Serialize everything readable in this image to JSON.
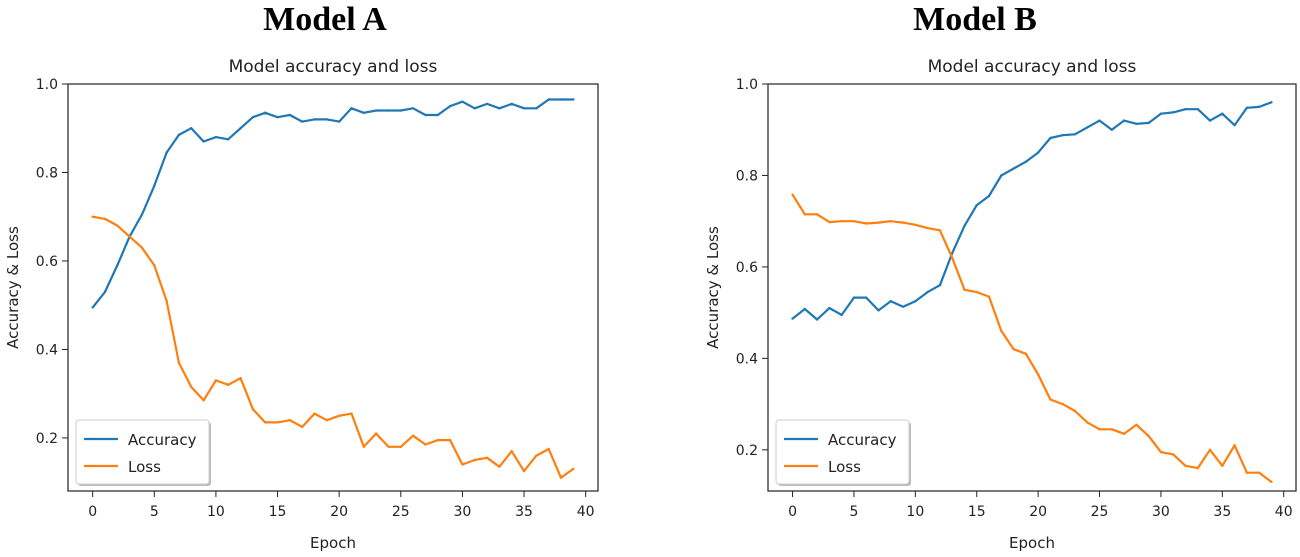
{
  "colors": {
    "accuracy": "#1f77b4",
    "loss": "#ff7f0e"
  },
  "charts": [
    {
      "heading": "Model A"
    },
    {
      "heading": "Model B"
    }
  ],
  "chart_data": [
    {
      "type": "line",
      "title": "Model accuracy and loss",
      "xlabel": "Epoch",
      "ylabel": "Accuracy & Loss",
      "xlim": [
        -2,
        41
      ],
      "ylim": [
        0.08,
        1.0
      ],
      "xticks": [
        0,
        5,
        10,
        15,
        20,
        25,
        30,
        35,
        40
      ],
      "yticks": [
        0.2,
        0.4,
        0.6,
        0.8,
        1.0
      ],
      "legend": "lower-left",
      "x": [
        0,
        1,
        2,
        3,
        4,
        5,
        6,
        7,
        8,
        9,
        10,
        11,
        12,
        13,
        14,
        15,
        16,
        17,
        18,
        19,
        20,
        21,
        22,
        23,
        24,
        25,
        26,
        27,
        28,
        29,
        30,
        31,
        32,
        33,
        34,
        35,
        36,
        37,
        38,
        39
      ],
      "series": [
        {
          "name": "Accuracy",
          "color": "#1f77b4",
          "values": [
            0.495,
            0.53,
            0.59,
            0.655,
            0.705,
            0.77,
            0.845,
            0.885,
            0.9,
            0.87,
            0.88,
            0.875,
            0.9,
            0.925,
            0.935,
            0.925,
            0.93,
            0.915,
            0.92,
            0.92,
            0.915,
            0.945,
            0.935,
            0.94,
            0.94,
            0.94,
            0.945,
            0.93,
            0.93,
            0.95,
            0.96,
            0.945,
            0.955,
            0.945,
            0.955,
            0.945,
            0.945,
            0.965,
            0.965,
            0.965
          ]
        },
        {
          "name": "Loss",
          "color": "#ff7f0e",
          "values": [
            0.7,
            0.695,
            0.68,
            0.655,
            0.63,
            0.59,
            0.51,
            0.37,
            0.315,
            0.285,
            0.33,
            0.32,
            0.335,
            0.265,
            0.235,
            0.235,
            0.24,
            0.225,
            0.255,
            0.24,
            0.25,
            0.255,
            0.18,
            0.21,
            0.18,
            0.18,
            0.205,
            0.185,
            0.195,
            0.195,
            0.14,
            0.15,
            0.155,
            0.135,
            0.17,
            0.125,
            0.16,
            0.175,
            0.11,
            0.13
          ]
        }
      ]
    },
    {
      "type": "line",
      "title": "Model accuracy and loss",
      "xlabel": "Epoch",
      "ylabel": "Accuracy & Loss",
      "xlim": [
        -2,
        41
      ],
      "ylim": [
        0.11,
        1.0
      ],
      "xticks": [
        0,
        5,
        10,
        15,
        20,
        25,
        30,
        35,
        40
      ],
      "yticks": [
        0.2,
        0.4,
        0.6,
        0.8,
        1.0
      ],
      "legend": "lower-left",
      "x": [
        0,
        1,
        2,
        3,
        4,
        5,
        6,
        7,
        8,
        9,
        10,
        11,
        12,
        13,
        14,
        15,
        16,
        17,
        18,
        19,
        20,
        21,
        22,
        23,
        24,
        25,
        26,
        27,
        28,
        29,
        30,
        31,
        32,
        33,
        34,
        35,
        36,
        37,
        38,
        39
      ],
      "series": [
        {
          "name": "Accuracy",
          "color": "#1f77b4",
          "values": [
            0.487,
            0.508,
            0.485,
            0.51,
            0.495,
            0.533,
            0.533,
            0.505,
            0.525,
            0.513,
            0.525,
            0.545,
            0.56,
            0.63,
            0.69,
            0.735,
            0.755,
            0.8,
            0.815,
            0.83,
            0.85,
            0.882,
            0.888,
            0.89,
            0.905,
            0.92,
            0.9,
            0.92,
            0.913,
            0.915,
            0.935,
            0.938,
            0.945,
            0.945,
            0.92,
            0.935,
            0.91,
            0.948,
            0.95,
            0.96
          ]
        },
        {
          "name": "Loss",
          "color": "#ff7f0e",
          "values": [
            0.758,
            0.715,
            0.715,
            0.698,
            0.7,
            0.7,
            0.695,
            0.697,
            0.7,
            0.697,
            0.692,
            0.685,
            0.68,
            0.62,
            0.55,
            0.545,
            0.535,
            0.46,
            0.42,
            0.41,
            0.365,
            0.31,
            0.3,
            0.285,
            0.26,
            0.245,
            0.245,
            0.235,
            0.255,
            0.23,
            0.195,
            0.19,
            0.165,
            0.16,
            0.2,
            0.165,
            0.21,
            0.15,
            0.15,
            0.13
          ]
        }
      ]
    }
  ]
}
